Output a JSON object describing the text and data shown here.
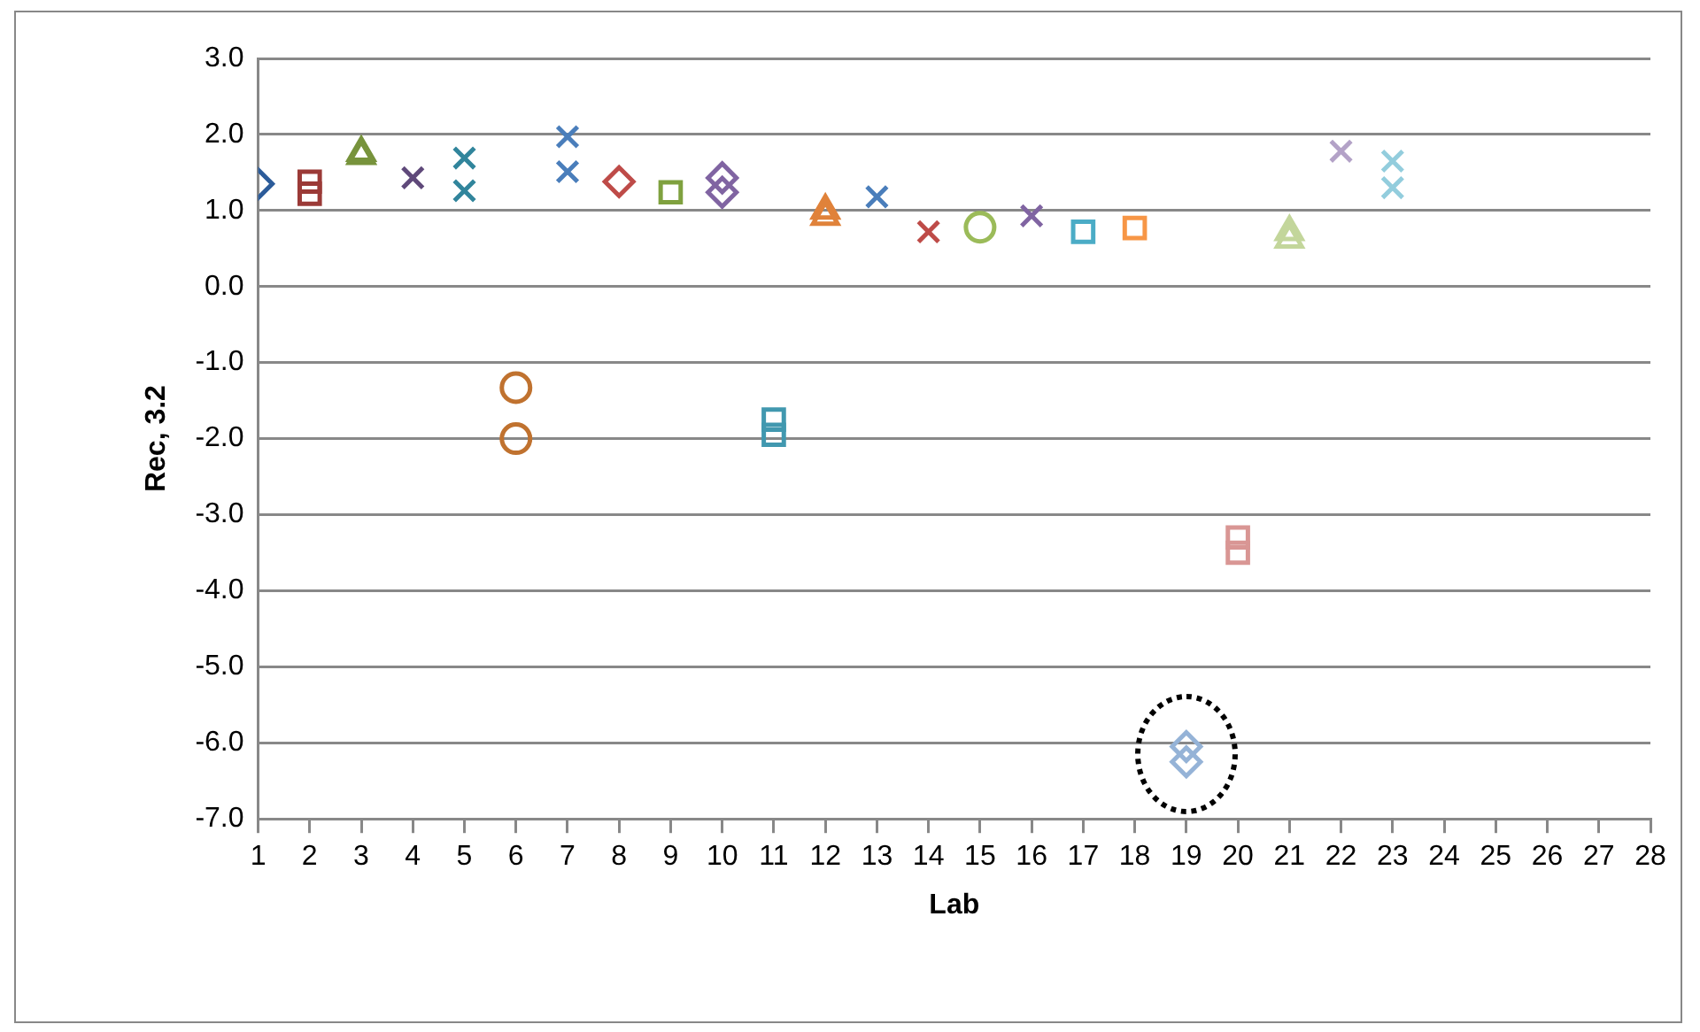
{
  "chart_data": {
    "type": "scatter",
    "xlabel": "Lab",
    "ylabel": "Rec, 3.2",
    "xlim": [
      1,
      28
    ],
    "xticks": [
      1,
      2,
      3,
      4,
      5,
      6,
      7,
      8,
      9,
      10,
      11,
      12,
      13,
      14,
      15,
      16,
      17,
      18,
      19,
      20,
      21,
      22,
      23,
      24,
      25,
      26,
      27,
      28
    ],
    "ylim": [
      -7,
      3
    ],
    "yticks": [
      {
        "value": -7,
        "label": "-7.0"
      },
      {
        "value": -6,
        "label": "-6.0"
      },
      {
        "value": -5,
        "label": "-5.0"
      },
      {
        "value": -4,
        "label": "-4.0"
      },
      {
        "value": -3,
        "label": "-3.0"
      },
      {
        "value": -2,
        "label": "-2.0"
      },
      {
        "value": -1,
        "label": "-1.0"
      },
      {
        "value": 0,
        "label": "0.0"
      },
      {
        "value": 1,
        "label": "1.0"
      },
      {
        "value": 2,
        "label": "2.0"
      },
      {
        "value": 3,
        "label": "3.0"
      }
    ],
    "grid": "y",
    "legend": false,
    "series": [
      {
        "x": [
          1
        ],
        "values": [
          1.35
        ],
        "color": "#2c5c9a",
        "marker": "diamond"
      },
      {
        "x": [
          2,
          2
        ],
        "values": [
          1.38,
          1.22
        ],
        "color": "#9b3a37",
        "marker": "square"
      },
      {
        "x": [
          3,
          3
        ],
        "values": [
          1.76,
          1.72
        ],
        "color": "#77933c",
        "marker": "triangle"
      },
      {
        "x": [
          4
        ],
        "values": [
          1.43
        ],
        "color": "#5f497a",
        "marker": "cross"
      },
      {
        "x": [
          5,
          5
        ],
        "values": [
          1.69,
          1.26
        ],
        "color": "#31859c",
        "marker": "cross"
      },
      {
        "x": [
          6,
          6
        ],
        "values": [
          -1.33,
          -2.0
        ],
        "color": "#c0722f",
        "marker": "circle"
      },
      {
        "x": [
          7,
          7
        ],
        "values": [
          1.97,
          1.51
        ],
        "color": "#4a7ebb",
        "marker": "cross"
      },
      {
        "x": [
          8
        ],
        "values": [
          1.38
        ],
        "color": "#be4b48",
        "marker": "diamond"
      },
      {
        "x": [
          9
        ],
        "values": [
          1.24
        ],
        "color": "#7fa13f",
        "marker": "square"
      },
      {
        "x": [
          10,
          10
        ],
        "values": [
          1.43,
          1.24
        ],
        "color": "#8064a2",
        "marker": "diamond"
      },
      {
        "x": [
          11,
          11
        ],
        "values": [
          -1.75,
          -1.95
        ],
        "color": "#4198af",
        "marker": "square"
      },
      {
        "x": [
          12,
          12
        ],
        "values": [
          1.0,
          0.92
        ],
        "color": "#e0823a",
        "marker": "triangle"
      },
      {
        "x": [
          13
        ],
        "values": [
          1.18
        ],
        "color": "#4a7ebb",
        "marker": "cross"
      },
      {
        "x": [
          14
        ],
        "values": [
          0.72
        ],
        "color": "#be4b48",
        "marker": "cross"
      },
      {
        "x": [
          15
        ],
        "values": [
          0.78
        ],
        "color": "#9bbb59",
        "marker": "circle"
      },
      {
        "x": [
          16
        ],
        "values": [
          0.93
        ],
        "color": "#8064a2",
        "marker": "cross"
      },
      {
        "x": [
          17
        ],
        "values": [
          0.72
        ],
        "color": "#4bacc6",
        "marker": "square"
      },
      {
        "x": [
          18
        ],
        "values": [
          0.77
        ],
        "color": "#f79646",
        "marker": "square"
      },
      {
        "x": [
          19,
          19
        ],
        "values": [
          -6.05,
          -6.25
        ],
        "color": "#95b3d7",
        "marker": "diamond"
      },
      {
        "x": [
          20,
          20
        ],
        "values": [
          -3.3,
          -3.5
        ],
        "color": "#d99694",
        "marker": "square"
      },
      {
        "x": [
          21,
          21
        ],
        "values": [
          0.72,
          0.62
        ],
        "color": "#c3d69b",
        "marker": "triangle"
      },
      {
        "x": [
          22
        ],
        "values": [
          1.78
        ],
        "color": "#b3a2c7",
        "marker": "cross"
      },
      {
        "x": [
          23,
          23
        ],
        "values": [
          1.65,
          1.3
        ],
        "color": "#93cddd",
        "marker": "cross"
      }
    ]
  }
}
